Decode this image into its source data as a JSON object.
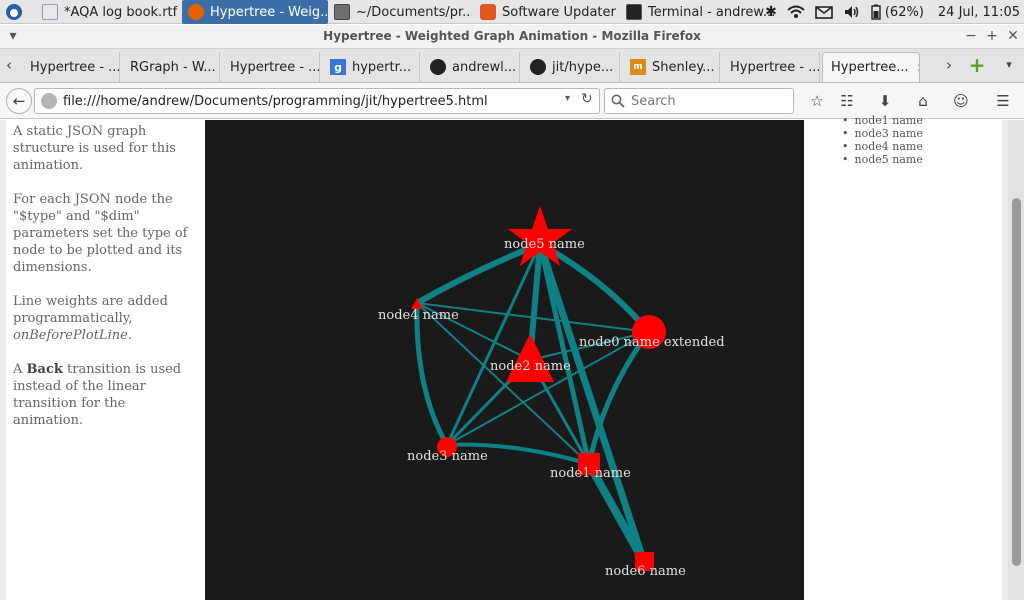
{
  "panel": {
    "tasks": [
      {
        "label": "*AQA log book.rtf",
        "icon": "document-icon"
      },
      {
        "label": "Hypertree - Weig...",
        "icon": "firefox-icon",
        "active": true
      },
      {
        "label": "~/Documents/pr...",
        "icon": "folder-icon"
      },
      {
        "label": "Software Updater",
        "icon": "updater-icon"
      },
      {
        "label": "Terminal - andrew...",
        "icon": "terminal-icon"
      }
    ],
    "battery": "(62%)",
    "clock": "24 Jul, 11:05"
  },
  "window": {
    "title": "Hypertree - Weighted Graph Animation - Mozilla Firefox"
  },
  "tabs": [
    {
      "label": "Hypertree - ..."
    },
    {
      "label": "RGraph - W..."
    },
    {
      "label": "Hypertree - ..."
    },
    {
      "label": "hypertr..."
    },
    {
      "label": "andrewl..."
    },
    {
      "label": "jit/hype..."
    },
    {
      "label": "Shenley..."
    },
    {
      "label": "Hypertree - ..."
    },
    {
      "label": "Hypertree..."
    }
  ],
  "nav": {
    "url": "file:///home/andrew/Documents/programming/jit/hypertree5.html",
    "search_placeholder": "Search"
  },
  "description": {
    "p1": "A static JSON graph structure is used for this animation.",
    "p2": "For each JSON node the \"$type\" and \"$dim\" parameters set the type of node to be plotted and its dimensions.",
    "p3a": "Line weights are added programmatically,",
    "p3b": "onBeforePlotLine",
    "p3c": ".",
    "p4a": "A ",
    "p4b": "Back",
    "p4c": " transition is used instead of the linear transition for the animation."
  },
  "node_list": [
    "node1 name",
    "node3 name",
    "node4 name",
    "node5 name"
  ],
  "colors": {
    "edge": "#0f8184",
    "node": "#ff0000",
    "canvas": "#1a1a1a"
  },
  "graph": {
    "nodes": [
      {
        "id": "node5",
        "label": "node5 name",
        "shape": "star"
      },
      {
        "id": "node4",
        "label": "node4 name",
        "shape": "triangle"
      },
      {
        "id": "node0",
        "label": "node0 name extended",
        "shape": "circle"
      },
      {
        "id": "node2",
        "label": "node2 name",
        "shape": "triangle"
      },
      {
        "id": "node3",
        "label": "node3 name",
        "shape": "circle"
      },
      {
        "id": "node1",
        "label": "node1 name",
        "shape": "square"
      },
      {
        "id": "node6",
        "label": "node6 name",
        "shape": "square"
      }
    ]
  }
}
